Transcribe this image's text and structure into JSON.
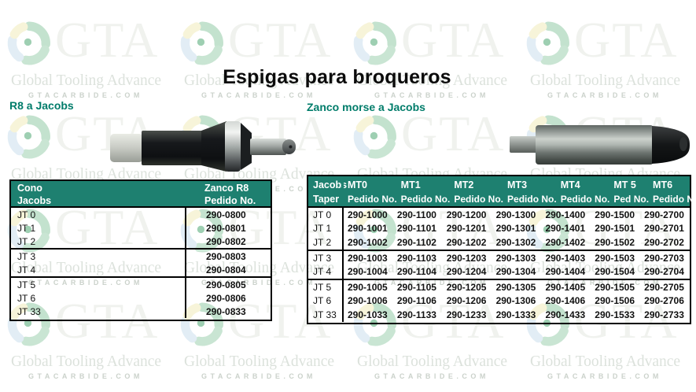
{
  "page": {
    "title": "Espigas para broqueros",
    "left_section": "R8 a Jacobs",
    "right_section": "Zanco morse a Jacobs"
  },
  "colors": {
    "header_teal": "#1E8070",
    "section_title": "#007C6A",
    "table_border": "#000000"
  },
  "watermark": {
    "brand": "GTA",
    "name": "Global Tooling Advance",
    "site": "GTACARBIDE.COM"
  },
  "left_table": {
    "header": {
      "col1_line1": "Cono",
      "col1_line2": "Jacobs",
      "col2_line1": "Zanco R8",
      "col2_line2": "Pedido No."
    },
    "groups": [
      {
        "rows": [
          {
            "jt": "JT 0",
            "code": "290-0800"
          },
          {
            "jt": "JT 1",
            "code": "290-0801"
          },
          {
            "jt": "JT 2",
            "code": "290-0802"
          }
        ]
      },
      {
        "rows": [
          {
            "jt": "JT 3",
            "code": "290-0803"
          },
          {
            "jt": "JT 4",
            "code": "290-0804"
          }
        ]
      },
      {
        "rows": [
          {
            "jt": "JT 5",
            "code": "290-0805"
          },
          {
            "jt": "JT 6",
            "code": "290-0806"
          },
          {
            "jt": "JT 33",
            "code": "290-0833"
          }
        ]
      }
    ]
  },
  "right_table": {
    "header": {
      "col1_line1": "Jacobs",
      "col1_line2": "Taper"
    },
    "columns": [
      {
        "label": "MT0",
        "sub": "Pedido No."
      },
      {
        "label": "MT1",
        "sub": "Pedido No."
      },
      {
        "label": "MT2",
        "sub": "Pedido No."
      },
      {
        "label": "MT3",
        "sub": "Pedido No."
      },
      {
        "label": "MT4",
        "sub": "Pedido No."
      },
      {
        "label": "MT 5",
        "sub": "Ped No."
      },
      {
        "label": "MT6",
        "sub": "Pedido No"
      }
    ],
    "groups": [
      {
        "rows": [
          {
            "jt": "JT 0",
            "codes": [
              "290-1000",
              "290-1100",
              "290-1200",
              "290-1300",
              "290-1400",
              "290-1500",
              "290-2700"
            ]
          },
          {
            "jt": "JT 1",
            "codes": [
              "290-1001",
              "290-1101",
              "290-1201",
              "290-1301",
              "290-1401",
              "290-1501",
              "290-2701"
            ]
          },
          {
            "jt": "JT 2",
            "codes": [
              "290-1002",
              "290-1102",
              "290-1202",
              "290-1302",
              "290-1402",
              "290-1502",
              "290-2702"
            ]
          }
        ]
      },
      {
        "rows": [
          {
            "jt": "JT 3",
            "codes": [
              "290-1003",
              "290-1103",
              "290-1203",
              "290-1303",
              "290-1403",
              "290-1503",
              "290-2703"
            ]
          },
          {
            "jt": "JT 4",
            "codes": [
              "290-1004",
              "290-1104",
              "290-1204",
              "290-1304",
              "290-1404",
              "290-1504",
              "290-2704"
            ]
          }
        ]
      },
      {
        "rows": [
          {
            "jt": "JT 5",
            "codes": [
              "290-1005",
              "290-1105",
              "290-1205",
              "290-1305",
              "290-1405",
              "290-1505",
              "290-2705"
            ]
          },
          {
            "jt": "JT 6",
            "codes": [
              "290-1006",
              "290-1106",
              "290-1206",
              "290-1306",
              "290-1406",
              "290-1506",
              "290-2706"
            ]
          },
          {
            "jt": "JT 33",
            "codes": [
              "290-1033",
              "290-1133",
              "290-1233",
              "290-1333",
              "290-1433",
              "290-1533",
              "290-2733"
            ]
          }
        ]
      }
    ]
  }
}
